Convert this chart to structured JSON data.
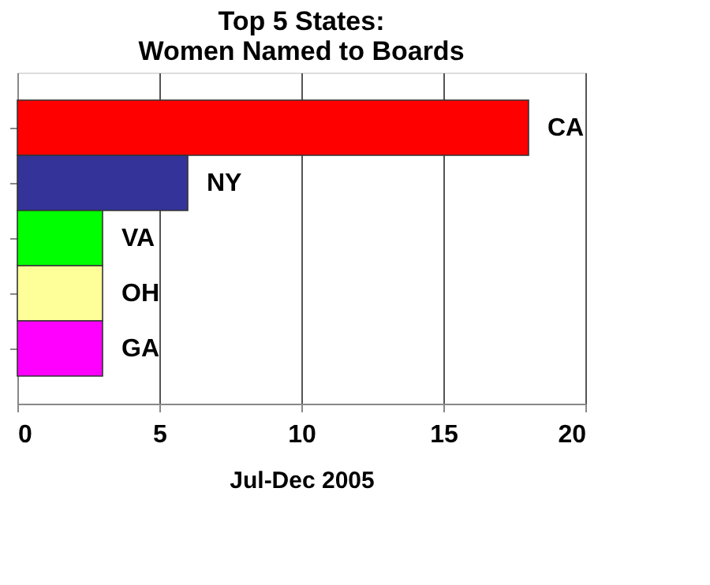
{
  "chart_data": {
    "type": "bar",
    "orientation": "horizontal",
    "title": "Top 5 States:\nWomen Named to Boards",
    "xlabel": "Jul-Dec 2005",
    "categories": [
      "CA",
      "NY",
      "VA",
      "OH",
      "GA"
    ],
    "values": [
      18,
      6,
      3,
      3,
      3
    ],
    "colors": [
      "#ff0000",
      "#333399",
      "#00ff00",
      "#ffff99",
      "#ff00ff"
    ],
    "xlim": [
      0,
      20
    ],
    "xticks": [
      0,
      5,
      10,
      15,
      20
    ],
    "grid": "x",
    "tick_labels": "x"
  }
}
